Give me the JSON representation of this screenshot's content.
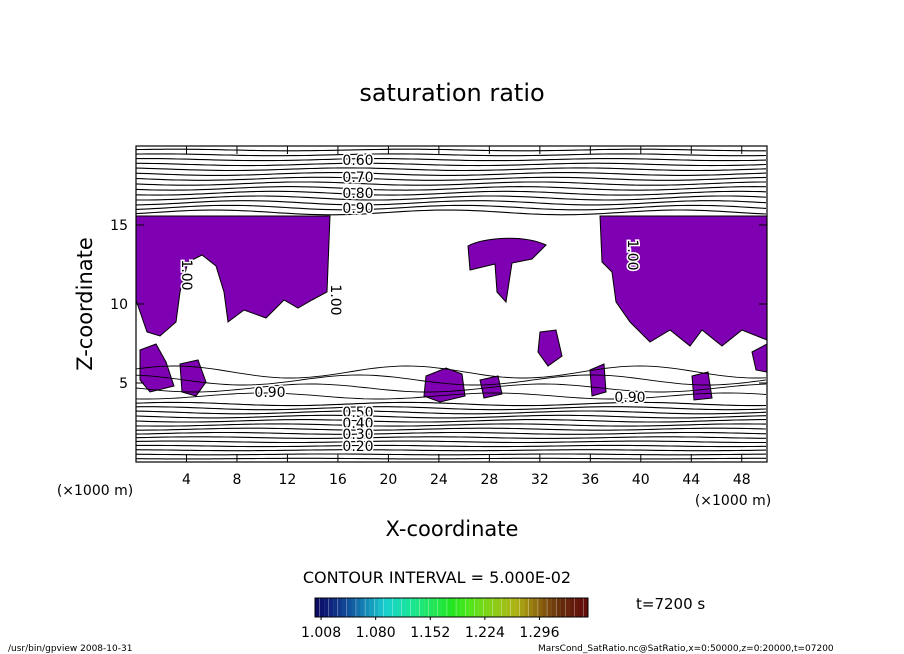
{
  "chart_data": {
    "type": "contour",
    "title": "saturation ratio",
    "x_label": "X-coordinate",
    "y_label": "Z-coordinate",
    "x_unit": "(×1000 m)",
    "y_unit": "(×1000 m)",
    "xlim": [
      0,
      50
    ],
    "xticks": [
      4,
      8,
      12,
      16,
      20,
      24,
      28,
      32,
      36,
      40,
      44,
      48
    ],
    "ylim": [
      0,
      20
    ],
    "yticks": [
      5,
      10,
      15
    ],
    "fill_color": "#7f00b2",
    "contour_labels": [
      "0.60",
      "0.70",
      "0.80",
      "0.90",
      "1.00",
      "1.00",
      "1.00",
      "0.90",
      "0.90",
      "0.50",
      "0.40",
      "0.30",
      "0.20"
    ],
    "contour_interval": "CONTOUR INTERVAL = 5.000E-02",
    "clim": [
      1.0,
      1.36
    ],
    "colorbar_ticks": [
      1.008,
      {
        "value": 1.08,
        "label": "1.080"
      },
      1.152,
      1.224,
      1.296
    ],
    "time": "t=7200 s",
    "footer_left": "/usr/bin/gpview   2008-10-31",
    "footer_right": "MarsCond_SatRatio.nc@SatRatio,x=0:50000,z=0:20000,t=07200"
  }
}
